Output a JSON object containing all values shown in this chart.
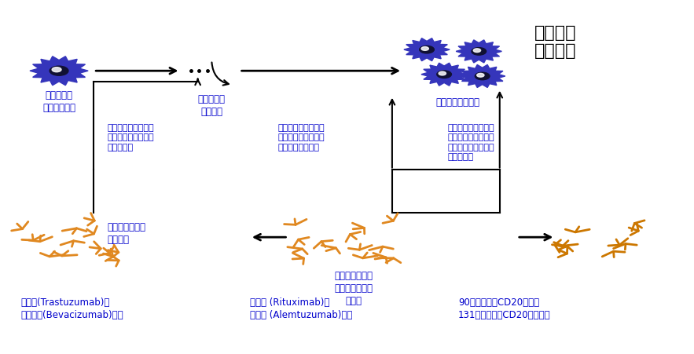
{
  "bg_color": "#ffffff",
  "title_top_right": "肿瘤细胞\n增殖过程",
  "label_cell1": "人体各器官\n组织肿瘤细胞",
  "label_growth": "生长因子等\n增殖信号",
  "label_cells_multiplied": "增殖后的肿瘤细胞",
  "desc_left": "结合肿瘤增殖过程中\n的生长因子等，阻断\n增殖过程。",
  "desc_mid": "直接结合到肿瘤细胞\n上，引导自身免疫系\n统杀伤肿瘤细胞。",
  "desc_right": "通过直接结合到肿瘤\n细胞上将偶联的药物\n带至肿瘤部位，杀伤\n肿瘤细胞。",
  "label_ab_left": "抑制肿瘤细胞增\n殖类单抗",
  "label_ab_mid": "直接特异性结合\n并杀伤肿瘤细胞\n类单抗",
  "label_drug_left": "赫赛汀(Trastuzumab)、\n阿瓦斯汀(Bevacizumab)等。",
  "label_drug_mid": "美罗华 (Rituximab)、\n坎帕斯 (Alemtuzumab)等。",
  "label_drug_right": "90钇标记的抗CD20单抗、\n131碘标记的抗CD20单抗等。",
  "text_color_blue": "#0000cc",
  "text_color_black": "#000000",
  "ab_color_orange": "#e08820",
  "ab_color_dark": "#cc7700",
  "cell_color": "#3535bb",
  "cell_center": "#111133",
  "cell_highlight": "#ffffff"
}
